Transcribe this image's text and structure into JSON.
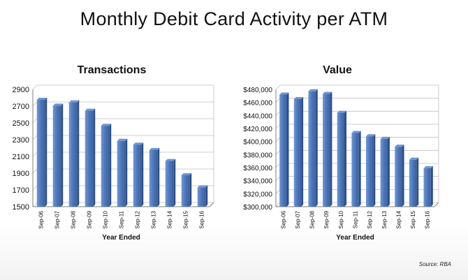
{
  "title": "Monthly Debit Card Activity per ATM",
  "source": "Source: RBA",
  "colors": {
    "bar": "#4a74b8",
    "bar_dark": "#2e4f86",
    "bar_light": "#6f96d4",
    "grid": "#bfbfbf",
    "axis": "#7f7f7f"
  },
  "chart_data": [
    {
      "type": "bar",
      "title": "Transactions",
      "xlabel": "Year Ended",
      "ylabel": "",
      "categories": [
        "Sep-06",
        "Sep-07",
        "Sep-08",
        "Sep-09",
        "Sep-10",
        "Sep-11",
        "Sep-12",
        "Sep-13",
        "Sep-14",
        "Sep-15",
        "Sep-16"
      ],
      "values": [
        2775,
        2705,
        2745,
        2645,
        2465,
        2285,
        2240,
        2175,
        2045,
        1875,
        1730
      ],
      "ylim": [
        1500,
        2900
      ],
      "yticks": [
        1500,
        1700,
        1900,
        2100,
        2300,
        2500,
        2700,
        2900
      ],
      "ytick_labels": [
        "1500",
        "1700",
        "1900",
        "2100",
        "2300",
        "2500",
        "2700",
        "2900"
      ],
      "grid": true
    },
    {
      "type": "bar",
      "title": "Value",
      "xlabel": "Year Ended",
      "ylabel": "",
      "categories": [
        "Sep-06",
        "Sep-07",
        "Sep-08",
        "Sep-09",
        "Sep-10",
        "Sep-11",
        "Sep-12",
        "Sep-13",
        "Sep-14",
        "Sep-15",
        "Sep-16"
      ],
      "values": [
        472000,
        465000,
        477000,
        473000,
        444000,
        413000,
        408000,
        404000,
        392000,
        372000,
        359000
      ],
      "ylim": [
        300000,
        480000
      ],
      "yticks": [
        300000,
        320000,
        340000,
        360000,
        380000,
        400000,
        420000,
        440000,
        460000,
        480000
      ],
      "ytick_labels": [
        "$300,000",
        "$320,000",
        "$340,000",
        "$360,000",
        "$380,000",
        "$400,000",
        "$420,000",
        "$440,000",
        "$460,000",
        "$480,000"
      ],
      "grid": true
    }
  ]
}
